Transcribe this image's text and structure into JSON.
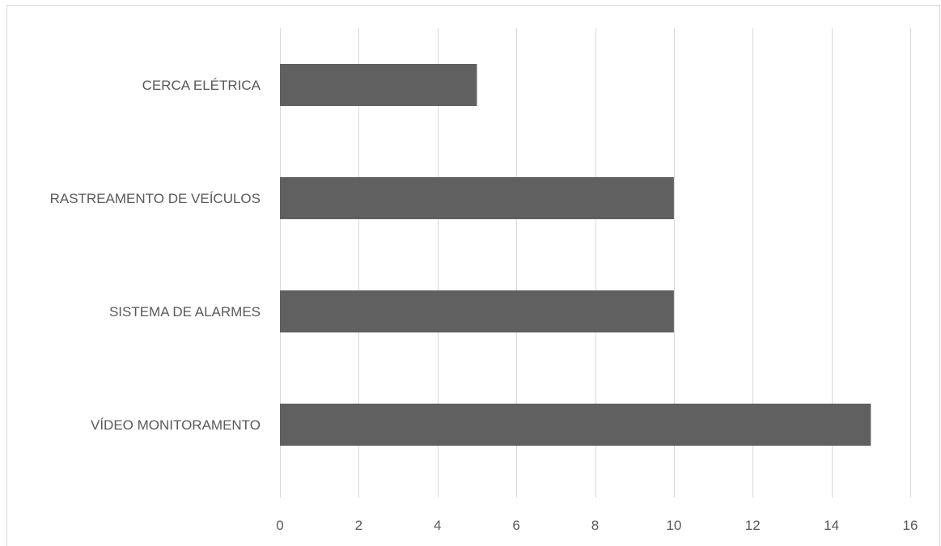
{
  "chart_data": {
    "type": "bar",
    "orientation": "horizontal",
    "categories": [
      "CERCA ELÉTRICA",
      "RASTREAMENTO DE VEÍCULOS",
      "SISTEMA DE ALARMES",
      "VÍDEO MONITORAMENTO"
    ],
    "values": [
      5,
      10,
      10,
      15
    ],
    "xlim": [
      0,
      16
    ],
    "xticks": [
      0,
      2,
      4,
      6,
      8,
      10,
      12,
      14,
      16
    ],
    "grid": true,
    "legend": "none",
    "colors": {
      "bar": "#606060",
      "grid": "#d9d9d9",
      "text": "#595959"
    }
  }
}
